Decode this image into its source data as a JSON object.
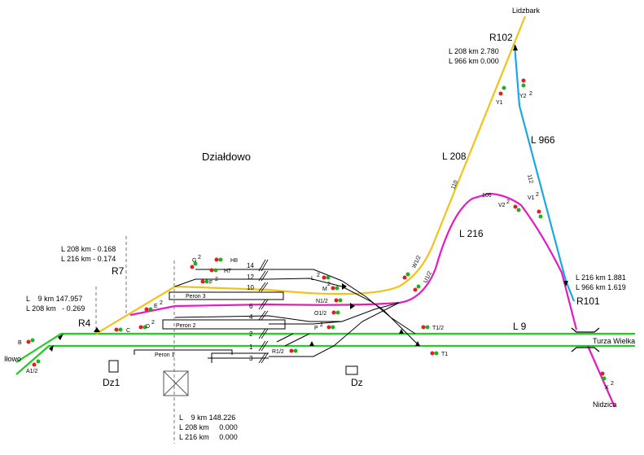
{
  "station": {
    "name": "Działdowo"
  },
  "colors": {
    "line9": "#22cc22",
    "line208": "#f2c21a",
    "line216": "#e619c3",
    "line966": "#19a7e6",
    "track": "#000000",
    "signal_red": "#e02020",
    "signal_green": "#20b020"
  },
  "destinations": {
    "lidzbark": "Lidzbark",
    "ilowo": "Iłowo",
    "turza": "Turza Wielka",
    "nidzica": "Nidzica"
  },
  "junctions": {
    "r102": "R102",
    "r101": "R101",
    "r7": "R7",
    "r4": "R4"
  },
  "kilometrage": {
    "r102_1": "L 208 km 2.780",
    "r102_2": "L 966 km 0.000",
    "r101_1": "L 216 km 1.881",
    "r101_2": "L 966 km 1.619",
    "r7_1": "L 208 km - 0.168",
    "r7_2": "L 216 km - 0.174",
    "r4_1": "L    9 km 147.957",
    "r4_2": "L 208 km   - 0.269",
    "bottom_1": "L    9 km 148.226",
    "bottom_2": "L 208 km     0.000",
    "bottom_3": "L 216 km     0.000"
  },
  "line_labels": {
    "l208": "L 208",
    "l966": "L 966",
    "l216": "L 216",
    "l9": "L 9"
  },
  "route_numbers": {
    "n110": "110",
    "n112": "112",
    "n106": "106"
  },
  "tracks": {
    "t14": "14",
    "t12": "12",
    "t10": "10",
    "t6": "6",
    "t4": "4",
    "t2": "2",
    "t1": "1",
    "t3": "3"
  },
  "platforms": {
    "p1": "Peron 1",
    "p2": "Peron 2",
    "p3": "Peron 3"
  },
  "posts": {
    "dz1": "Dz1",
    "dz": "Dz"
  },
  "signals": {
    "b": "B",
    "a12": "A1/2",
    "c": "C",
    "d2": "D",
    "e2": "E",
    "f2": "F",
    "g2": "G",
    "h8": "H8",
    "h7": "H7",
    "l2": "L",
    "m2": "M",
    "n12": "N1/2",
    "o12": "O1/2",
    "p2": "P",
    "r12": "R1/2",
    "t12": "T1/2",
    "t1": "T1",
    "w12": "W1/2",
    "u12": "U1/2",
    "y1": "Y1",
    "y2": "Y2",
    "v1": "V1",
    "v2": "V2",
    "x2": "X"
  },
  "superscripts": {
    "two": "2"
  }
}
